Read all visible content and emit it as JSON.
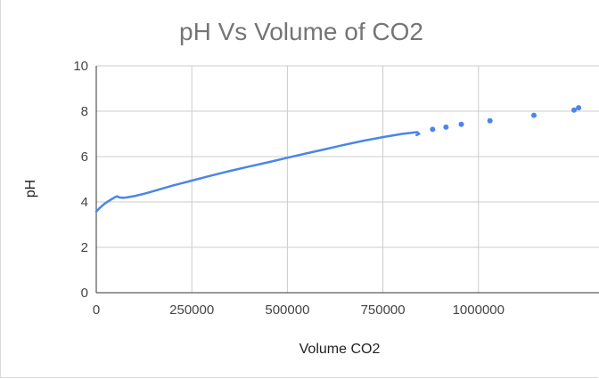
{
  "chart_data": {
    "type": "line",
    "title": "pH Vs Volume of CO2",
    "xlabel": "Volume CO2",
    "ylabel": "pH",
    "xlim": [
      0,
      1250000
    ],
    "ylim": [
      0,
      10
    ],
    "x_tick_labels": [
      "0",
      "250000",
      "500000",
      "750000",
      "1000000"
    ],
    "x_tick_values": [
      0,
      250000,
      500000,
      750000,
      1000000
    ],
    "y_tick_labels": [
      "0",
      "2",
      "4",
      "6",
      "8",
      "10"
    ],
    "y_tick_values": [
      0,
      2,
      4,
      6,
      8,
      10
    ],
    "grid": true,
    "color": "#4a86e8",
    "series": [
      {
        "style": "line",
        "x": [
          0,
          10000,
          20000,
          30000,
          40000,
          50000,
          55000,
          60000,
          70000,
          80000,
          100000,
          125000,
          150000,
          175000,
          200000,
          225000,
          250000,
          300000,
          350000,
          400000,
          450000,
          500000,
          550000,
          600000,
          650000,
          700000,
          750000,
          800000,
          830000,
          840000,
          845000,
          838000
        ],
        "y": [
          3.58,
          3.75,
          3.9,
          4.02,
          4.12,
          4.22,
          4.25,
          4.2,
          4.18,
          4.2,
          4.26,
          4.36,
          4.48,
          4.6,
          4.72,
          4.83,
          4.94,
          5.16,
          5.37,
          5.56,
          5.75,
          5.95,
          6.14,
          6.33,
          6.52,
          6.7,
          6.86,
          7.0,
          7.06,
          7.08,
          7.0,
          6.95
        ]
      },
      {
        "style": "points",
        "x": [
          880000,
          915000,
          955000,
          1030000,
          1145000,
          1250000,
          1262000
        ],
        "y": [
          7.2,
          7.3,
          7.42,
          7.58,
          7.82,
          8.05,
          8.15
        ]
      }
    ]
  }
}
